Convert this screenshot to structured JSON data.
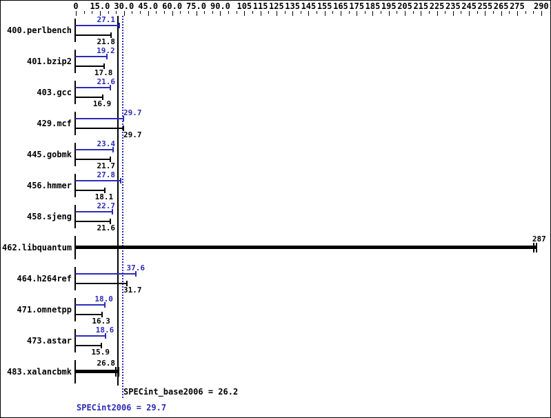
{
  "window": {
    "background": "#ffffff",
    "border_color": "#000000"
  },
  "chart_data": {
    "type": "bar",
    "orientation": "horizontal",
    "title": "",
    "axis": {
      "min": 0,
      "max": 290,
      "position": "top",
      "minor_tick_step": 5,
      "labeled_tick_values": [
        0,
        15,
        30,
        45,
        60,
        75,
        90,
        105,
        115,
        125,
        135,
        145,
        155,
        165,
        175,
        185,
        195,
        205,
        215,
        225,
        235,
        245,
        255,
        265,
        275,
        290
      ],
      "labeled_ticks": [
        "0",
        "15.0",
        "30.0",
        "45.0",
        "60.0",
        "75.0",
        "90.0",
        "105",
        "115",
        "125",
        "135",
        "145",
        "155",
        "165",
        "175",
        "185",
        "195",
        "205",
        "215",
        "225",
        "235",
        "245",
        "255",
        "265",
        "275",
        "290"
      ]
    },
    "series_names": [
      "SPECint2006 (peak, blue)",
      "SPECint_base2006 (base, black)"
    ],
    "benchmarks": [
      {
        "name": "400.perlbench",
        "peak": 27.1,
        "base": 21.8,
        "peak_label": "27.1",
        "base_label": "21.8"
      },
      {
        "name": "401.bzip2",
        "peak": 19.2,
        "base": 17.8,
        "peak_label": "19.2",
        "base_label": "17.8"
      },
      {
        "name": "403.gcc",
        "peak": 21.6,
        "base": 16.9,
        "peak_label": "21.6",
        "base_label": "16.9"
      },
      {
        "name": "429.mcf",
        "peak": 29.7,
        "base": 29.7,
        "peak_label": "29.7",
        "base_label": "29.7"
      },
      {
        "name": "445.gobmk",
        "peak": 23.4,
        "base": 21.7,
        "peak_label": "23.4",
        "base_label": "21.7"
      },
      {
        "name": "456.hmmer",
        "peak": 27.8,
        "base": 18.1,
        "peak_label": "27.8",
        "base_label": "18.1"
      },
      {
        "name": "458.sjeng",
        "peak": 22.7,
        "base": 21.6,
        "peak_label": "22.7",
        "base_label": "21.6"
      },
      {
        "name": "462.libquantum",
        "merged": true,
        "value": 287,
        "value_label": "287"
      },
      {
        "name": "464.h264ref",
        "peak": 37.6,
        "base": 31.7,
        "peak_label": "37.6",
        "base_label": "31.7"
      },
      {
        "name": "471.omnetpp",
        "peak": 18.0,
        "base": 16.3,
        "peak_label": "18.0",
        "base_label": "16.3"
      },
      {
        "name": "473.astar",
        "peak": 18.6,
        "base": 15.9,
        "peak_label": "18.6",
        "base_label": "15.9"
      },
      {
        "name": "483.xalancbmk",
        "merged": true,
        "value": 26.8,
        "value_label": "26.8"
      }
    ],
    "reference_lines": [
      {
        "name": "SPECint_base2006",
        "value": 26.2,
        "style": "solid",
        "color": "#000000"
      },
      {
        "name": "SPECint2006",
        "value": 29.7,
        "style": "dotted",
        "color": "#2b2bb8"
      }
    ],
    "summary": {
      "base_text": "SPECint_base2006 = 26.2",
      "peak_text": "SPECint2006 = 29.7",
      "base_mean": 26.2,
      "peak_mean": 29.7
    },
    "colors": {
      "peak": "#2b2bb8",
      "base": "#000000"
    }
  }
}
